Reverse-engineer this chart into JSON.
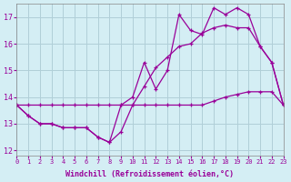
{
  "xlabel": "Windchill (Refroidissement éolien,°C)",
  "bg_color": "#d4eef4",
  "grid_color": "#b0cfd8",
  "line_color": "#990099",
  "xlim": [
    0,
    23
  ],
  "ylim": [
    11.8,
    17.5
  ],
  "yticks": [
    12,
    13,
    14,
    15,
    16,
    17
  ],
  "xticks": [
    0,
    1,
    2,
    3,
    4,
    5,
    6,
    7,
    8,
    9,
    10,
    11,
    12,
    13,
    14,
    15,
    16,
    17,
    18,
    19,
    20,
    21,
    22,
    23
  ],
  "hours": [
    0,
    1,
    2,
    3,
    4,
    5,
    6,
    7,
    8,
    9,
    10,
    11,
    12,
    13,
    14,
    15,
    16,
    17,
    18,
    19,
    20,
    21,
    22,
    23
  ],
  "line1": [
    13.7,
    13.7,
    13.7,
    13.7,
    13.7,
    13.7,
    13.7,
    13.7,
    13.7,
    13.7,
    13.7,
    13.7,
    13.7,
    13.7,
    13.7,
    13.7,
    13.7,
    13.85,
    14.0,
    14.1,
    14.2,
    14.2,
    14.2,
    13.7
  ],
  "line2": [
    13.7,
    13.3,
    13.0,
    13.0,
    12.85,
    12.85,
    12.85,
    12.5,
    12.3,
    12.7,
    13.7,
    14.4,
    15.1,
    15.5,
    15.9,
    16.0,
    16.4,
    16.6,
    16.7,
    16.6,
    16.6,
    15.9,
    15.3,
    13.7
  ],
  "line3": [
    13.7,
    13.3,
    13.0,
    13.0,
    12.85,
    12.85,
    12.85,
    12.5,
    12.3,
    13.7,
    14.0,
    15.3,
    14.3,
    15.0,
    17.1,
    16.5,
    16.35,
    17.35,
    17.1,
    17.35,
    17.1,
    15.9,
    15.3,
    13.7
  ]
}
